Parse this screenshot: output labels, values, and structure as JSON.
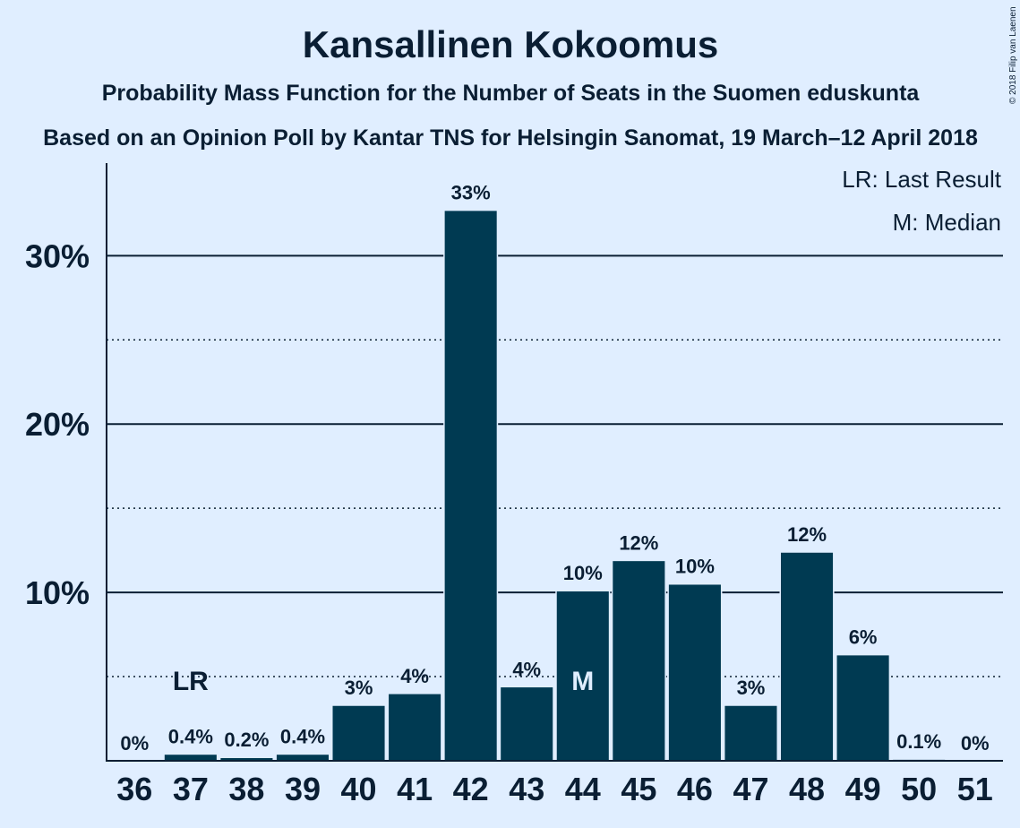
{
  "header": {
    "title": "Kansallinen Kokoomus",
    "subtitle": "Probability Mass Function for the Number of Seats in the Suomen eduskunta",
    "source": "Based on an Opinion Poll by Kantar TNS for Helsingin Sanomat, 19 March–12 April 2018"
  },
  "legend": {
    "last_result": "LR: Last Result",
    "median": "M: Median"
  },
  "copyright": "© 2018 Filip van Laenen",
  "colors": {
    "background": "#e0eeff",
    "bar": "#003a52",
    "text": "#0a1e33",
    "marker_on_bar": "#e0eeff"
  },
  "chart_data": {
    "type": "bar",
    "title": "Kansallinen Kokoomus",
    "xlabel": "",
    "ylabel": "",
    "categories": [
      "36",
      "37",
      "38",
      "39",
      "40",
      "41",
      "42",
      "43",
      "44",
      "45",
      "46",
      "47",
      "48",
      "49",
      "50",
      "51"
    ],
    "values": [
      0,
      0.4,
      0.2,
      0.4,
      3.3,
      4.0,
      32.7,
      4.4,
      10.1,
      11.9,
      10.5,
      3.3,
      12.4,
      6.3,
      0.1,
      0
    ],
    "value_labels": [
      "0%",
      "0.4%",
      "0.2%",
      "0.4%",
      "3%",
      "4%",
      "33%",
      "4%",
      "10%",
      "12%",
      "10%",
      "3%",
      "12%",
      "6%",
      "0.1%",
      "0%"
    ],
    "ylim": [
      0,
      35.5
    ],
    "yticks_major": [
      10,
      20,
      30
    ],
    "ytick_labels": [
      "10%",
      "20%",
      "30%"
    ],
    "yticks_minor": [
      5,
      15,
      25
    ],
    "grid": "solid at major ticks, dotted at minor ticks",
    "markers": [
      {
        "label": "LR",
        "category": "37",
        "on_bar": false
      },
      {
        "label": "M",
        "category": "44",
        "on_bar": true
      }
    ],
    "legend_position": "top-right"
  }
}
